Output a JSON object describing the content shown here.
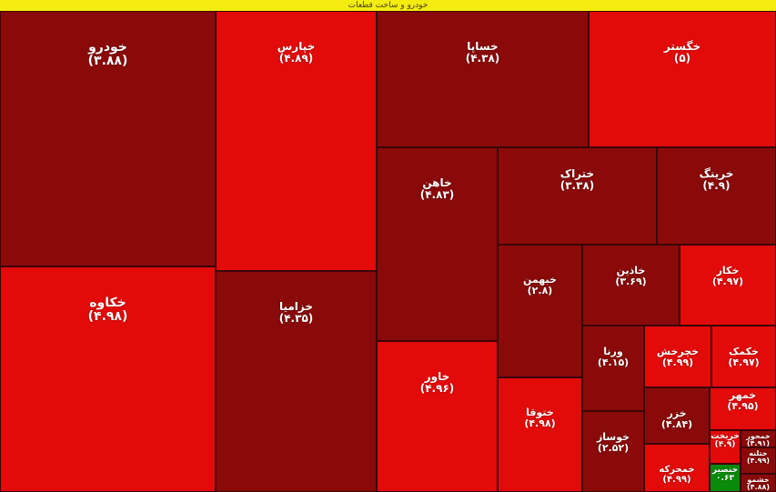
{
  "header": {
    "title": "خودرو و ساخت قطعات"
  },
  "colors": {
    "strong_red": "#e30a0a",
    "dark_red": "#8a0a0a",
    "green": "#0a8a0a",
    "header_bg": "#f4ec10"
  },
  "chart_data": {
    "type": "treemap",
    "title": "خودرو و ساخت قطعات",
    "items": [
      {
        "symbol": "خودرو",
        "change_label": "(۳.۸۸)",
        "change": 3.88,
        "color": "dark_red"
      },
      {
        "symbol": "خپارس",
        "change_label": "(۴.۸۹)",
        "change": 4.89,
        "color": "strong_red"
      },
      {
        "symbol": "خساپا",
        "change_label": "(۴.۳۸)",
        "change": 4.38,
        "color": "dark_red"
      },
      {
        "symbol": "خگستر",
        "change_label": "(۵)",
        "change": 5,
        "color": "strong_red"
      },
      {
        "symbol": "خاهن",
        "change_label": "(۴.۸۳)",
        "change": 4.83,
        "color": "dark_red"
      },
      {
        "symbol": "ختراک",
        "change_label": "(۳.۳۸)",
        "change": 3.38,
        "color": "dark_red"
      },
      {
        "symbol": "خرینگ",
        "change_label": "(۴.۹)",
        "change": 4.9,
        "color": "dark_red"
      },
      {
        "symbol": "خکاوه",
        "change_label": "(۴.۹۸)",
        "change": 4.98,
        "color": "strong_red"
      },
      {
        "symbol": "خزامیا",
        "change_label": "(۴.۳۵)",
        "change": 4.35,
        "color": "dark_red"
      },
      {
        "symbol": "خبهمن",
        "change_label": "(۲.۸)",
        "change": 2.8,
        "color": "dark_red"
      },
      {
        "symbol": "خاذین",
        "change_label": "(۳.۶۹)",
        "change": 3.69,
        "color": "dark_red"
      },
      {
        "symbol": "خکار",
        "change_label": "(۴.۹۷)",
        "change": 4.97,
        "color": "strong_red"
      },
      {
        "symbol": "خاور",
        "change_label": "(۴.۹۶)",
        "change": 4.96,
        "color": "strong_red"
      },
      {
        "symbol": "ورنا",
        "change_label": "(۴.۱۵)",
        "change": 4.15,
        "color": "dark_red"
      },
      {
        "symbol": "خچرخش",
        "change_label": "(۴.۹۹)",
        "change": 4.99,
        "color": "strong_red"
      },
      {
        "symbol": "خکمک",
        "change_label": "(۴.۹۷)",
        "change": 4.97,
        "color": "strong_red"
      },
      {
        "symbol": "ختوقا",
        "change_label": "(۴.۹۸)",
        "change": 4.98,
        "color": "strong_red"
      },
      {
        "symbol": "خزر",
        "change_label": "(۴.۸۴)",
        "change": 4.84,
        "color": "dark_red"
      },
      {
        "symbol": "خمهر",
        "change_label": "(۴.۹۵)",
        "change": 4.95,
        "color": "strong_red"
      },
      {
        "symbol": "خوساز",
        "change_label": "(۲.۵۲)",
        "change": 2.52,
        "color": "dark_red"
      },
      {
        "symbol": "خمحرکه",
        "change_label": "(۴.۹۹)",
        "change": 4.99,
        "color": "strong_red"
      },
      {
        "symbol": "خریخت",
        "change_label": "(۴.۹)",
        "change": 4.9,
        "color": "strong_red"
      },
      {
        "symbol": "خمحور",
        "change_label": "(۴.۹۱)",
        "change": 4.91,
        "color": "dark_red"
      },
      {
        "symbol": "ختلنه",
        "change_label": "(۴.۹۹)",
        "change": 4.99,
        "color": "dark_red"
      },
      {
        "symbol": "خشمو",
        "change_label": "(۴.۸۸)",
        "change": 4.88,
        "color": "dark_red"
      },
      {
        "symbol": "خنصیر",
        "change_label": "۰.۶۳",
        "change": 0.63,
        "color": "green"
      }
    ]
  }
}
